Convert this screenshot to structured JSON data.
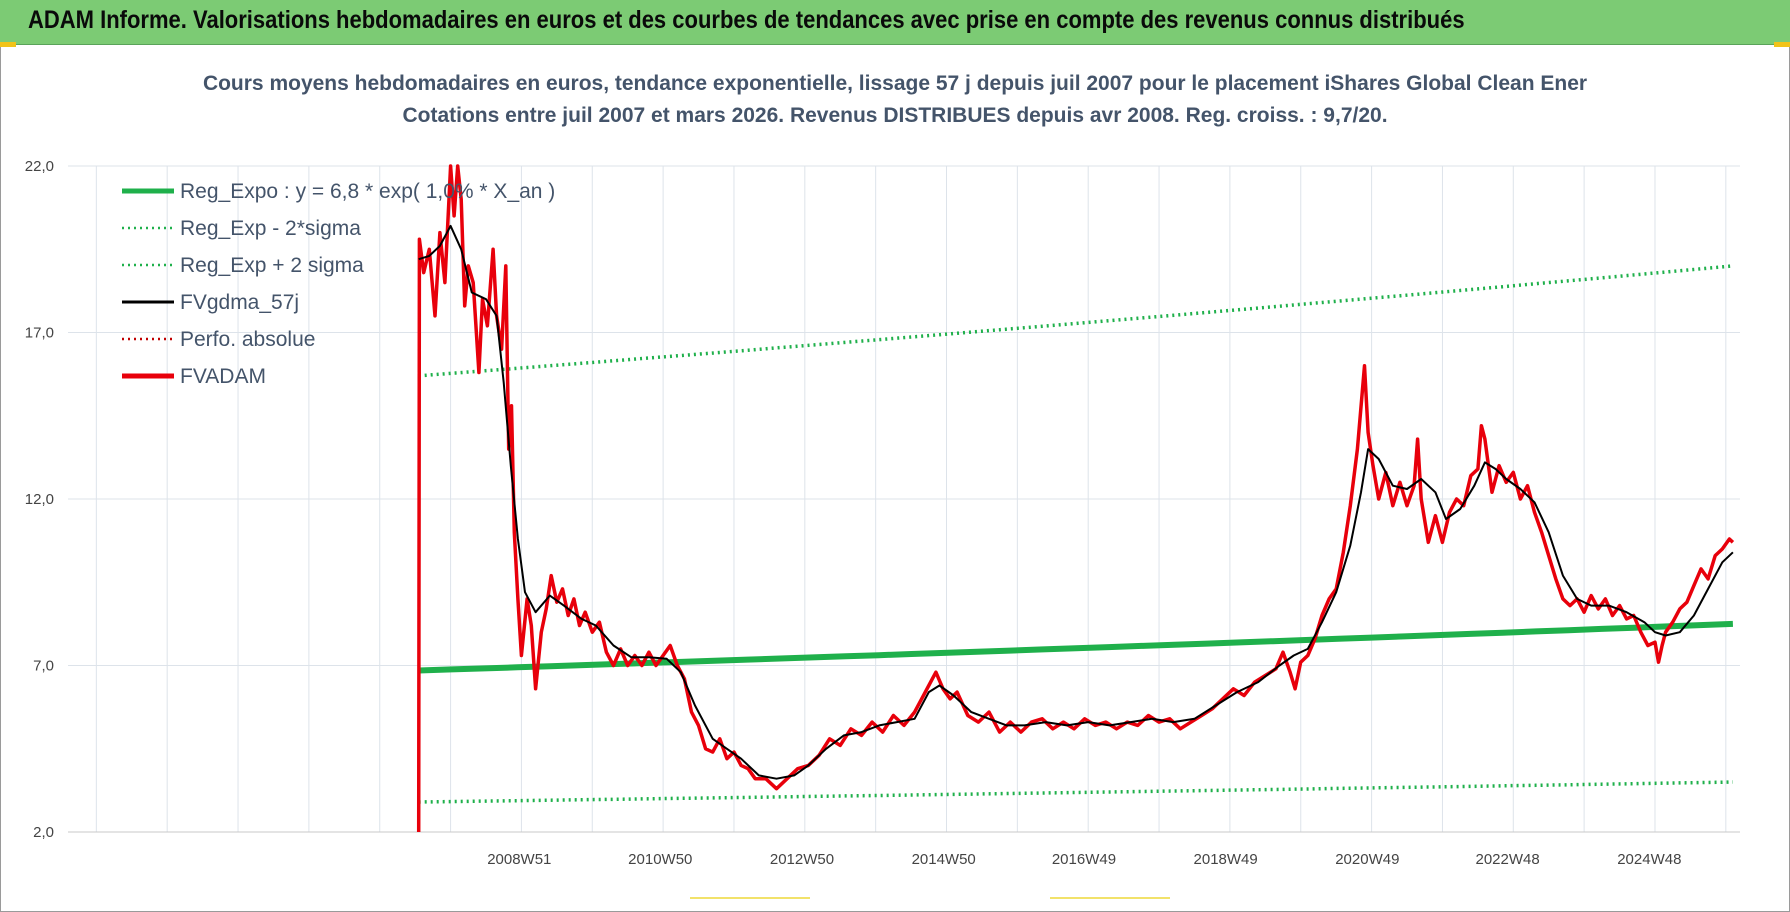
{
  "header": {
    "title": "ADAM Informe. Valorisations hebdomadaires en euros et des courbes de tendances avec prise en compte des revenus connus distribués"
  },
  "colors": {
    "header_bg": "#7ccb74",
    "accent_yellow": "#f2c318",
    "fvadam": "#e8000b",
    "fvgdma": "#000000",
    "reg": "#1fb04b"
  },
  "chart_data": {
    "type": "line",
    "title_line1": "Cours moyens hebdomadaires en euros, tendance exponentielle, lissage 57 j depuis juil 2007 pour le placement iShares Global Clean Ener",
    "title_line2": "Cotations entre juil 2007 et mars 2026. Revenus DISTRIBUES depuis avr 2008. Reg. croiss. : 9,7/20.",
    "x_range": [
      2002.6,
      2026.2
    ],
    "ylim": [
      2,
      22
    ],
    "y_ticks": [
      2,
      7,
      12,
      17,
      22
    ],
    "y_tick_labels": [
      "2,0",
      "7,0",
      "12,0",
      "17,0",
      "22,0"
    ],
    "x_ticks": [
      {
        "x": 2008.97,
        "label": "2008W51"
      },
      {
        "x": 2010.96,
        "label": "2010W50"
      },
      {
        "x": 2012.96,
        "label": "2012W50"
      },
      {
        "x": 2014.96,
        "label": "2014W50"
      },
      {
        "x": 2016.94,
        "label": "2016W49"
      },
      {
        "x": 2018.94,
        "label": "2018W49"
      },
      {
        "x": 2020.94,
        "label": "2020W49"
      },
      {
        "x": 2022.92,
        "label": "2022W48"
      },
      {
        "x": 2024.92,
        "label": "2024W48"
      }
    ],
    "grid": true,
    "legend_position": "top-left",
    "legend": [
      {
        "label": "Reg_Expo : y = 6,8 * exp( 1,0% *  X_an )",
        "color": "#1fb04b",
        "style": "solid-thick"
      },
      {
        "label": "Reg_Exp - 2*sigma",
        "color": "#1fb04b",
        "style": "dotted"
      },
      {
        "label": "Reg_Exp + 2 sigma",
        "color": "#1fb04b",
        "style": "dotted"
      },
      {
        "label": "FVgdma_57j",
        "color": "#000000",
        "style": "solid"
      },
      {
        "label": "Perfo. absolue",
        "color": "#c00000",
        "style": "dotted"
      },
      {
        "label": "FVADAM",
        "color": "#e8000b",
        "style": "solid-thick"
      }
    ],
    "series": [
      {
        "name": "Reg_Expo : y = 6,8 * exp( 1,0% *  X_an )",
        "style": "solid-thick",
        "x": [
          2007.55,
          2026.1
        ],
        "y": [
          6.85,
          8.25
        ]
      },
      {
        "name": "Reg_Exp - 2*sigma",
        "style": "dotted",
        "x": [
          2007.55,
          2026.1
        ],
        "y": [
          2.9,
          3.5
        ]
      },
      {
        "name": "Reg_Exp + 2 sigma",
        "style": "dotted",
        "x": [
          2007.55,
          2026.1
        ],
        "y": [
          15.7,
          19.0
        ]
      },
      {
        "name": "FVgdma_57j",
        "style": "solid",
        "points": [
          [
            2007.55,
            19.2
          ],
          [
            2007.7,
            19.3
          ],
          [
            2007.85,
            19.6
          ],
          [
            2008.0,
            20.2
          ],
          [
            2008.15,
            19.5
          ],
          [
            2008.3,
            18.2
          ],
          [
            2008.5,
            18.0
          ],
          [
            2008.65,
            17.5
          ],
          [
            2008.75,
            15.5
          ],
          [
            2008.85,
            13.0
          ],
          [
            2008.95,
            10.8
          ],
          [
            2009.05,
            9.2
          ],
          [
            2009.2,
            8.6
          ],
          [
            2009.4,
            9.1
          ],
          [
            2009.6,
            8.8
          ],
          [
            2009.85,
            8.4
          ],
          [
            2010.05,
            8.2
          ],
          [
            2010.3,
            7.6
          ],
          [
            2010.55,
            7.25
          ],
          [
            2010.8,
            7.25
          ],
          [
            2011.05,
            7.2
          ],
          [
            2011.25,
            6.8
          ],
          [
            2011.45,
            5.8
          ],
          [
            2011.7,
            4.8
          ],
          [
            2011.9,
            4.5
          ],
          [
            2012.1,
            4.2
          ],
          [
            2012.35,
            3.7
          ],
          [
            2012.6,
            3.6
          ],
          [
            2012.85,
            3.7
          ],
          [
            2013.05,
            4.0
          ],
          [
            2013.3,
            4.5
          ],
          [
            2013.55,
            4.9
          ],
          [
            2013.8,
            5.0
          ],
          [
            2014.05,
            5.2
          ],
          [
            2014.3,
            5.3
          ],
          [
            2014.55,
            5.4
          ],
          [
            2014.75,
            6.2
          ],
          [
            2014.9,
            6.4
          ],
          [
            2015.1,
            6.1
          ],
          [
            2015.35,
            5.6
          ],
          [
            2015.6,
            5.4
          ],
          [
            2015.85,
            5.2
          ],
          [
            2016.1,
            5.2
          ],
          [
            2016.4,
            5.3
          ],
          [
            2016.7,
            5.2
          ],
          [
            2017.0,
            5.3
          ],
          [
            2017.3,
            5.2
          ],
          [
            2017.6,
            5.3
          ],
          [
            2017.9,
            5.4
          ],
          [
            2018.2,
            5.3
          ],
          [
            2018.5,
            5.4
          ],
          [
            2018.8,
            5.8
          ],
          [
            2019.1,
            6.2
          ],
          [
            2019.4,
            6.5
          ],
          [
            2019.7,
            7.0
          ],
          [
            2019.9,
            7.3
          ],
          [
            2020.1,
            7.5
          ],
          [
            2020.3,
            8.3
          ],
          [
            2020.5,
            9.2
          ],
          [
            2020.7,
            10.6
          ],
          [
            2020.85,
            12.2
          ],
          [
            2020.95,
            13.5
          ],
          [
            2021.1,
            13.2
          ],
          [
            2021.3,
            12.4
          ],
          [
            2021.5,
            12.3
          ],
          [
            2021.7,
            12.6
          ],
          [
            2021.9,
            12.2
          ],
          [
            2022.05,
            11.4
          ],
          [
            2022.25,
            11.7
          ],
          [
            2022.45,
            12.4
          ],
          [
            2022.6,
            13.1
          ],
          [
            2022.75,
            12.9
          ],
          [
            2022.9,
            12.6
          ],
          [
            2023.1,
            12.3
          ],
          [
            2023.3,
            11.9
          ],
          [
            2023.5,
            11.0
          ],
          [
            2023.7,
            9.7
          ],
          [
            2023.9,
            9.0
          ],
          [
            2024.1,
            8.8
          ],
          [
            2024.35,
            8.8
          ],
          [
            2024.6,
            8.6
          ],
          [
            2024.85,
            8.3
          ],
          [
            2025.0,
            8.0
          ],
          [
            2025.15,
            7.9
          ],
          [
            2025.35,
            8.0
          ],
          [
            2025.55,
            8.5
          ],
          [
            2025.75,
            9.3
          ],
          [
            2025.95,
            10.1
          ],
          [
            2026.1,
            10.4
          ]
        ]
      },
      {
        "name": "FVADAM",
        "style": "solid-thick",
        "points": [
          [
            2007.55,
            2.0
          ],
          [
            2007.56,
            19.8
          ],
          [
            2007.62,
            18.8
          ],
          [
            2007.7,
            19.5
          ],
          [
            2007.78,
            17.5
          ],
          [
            2007.85,
            20.0
          ],
          [
            2007.92,
            18.5
          ],
          [
            2008.0,
            22.0
          ],
          [
            2008.05,
            20.5
          ],
          [
            2008.1,
            22.0
          ],
          [
            2008.15,
            21.0
          ],
          [
            2008.2,
            17.8
          ],
          [
            2008.25,
            19.0
          ],
          [
            2008.32,
            18.5
          ],
          [
            2008.4,
            15.8
          ],
          [
            2008.45,
            18.0
          ],
          [
            2008.52,
            17.2
          ],
          [
            2008.6,
            19.5
          ],
          [
            2008.65,
            17.5
          ],
          [
            2008.72,
            16.5
          ],
          [
            2008.78,
            19.0
          ],
          [
            2008.82,
            13.5
          ],
          [
            2008.86,
            14.8
          ],
          [
            2008.9,
            11.0
          ],
          [
            2008.95,
            9.0
          ],
          [
            2009.0,
            7.3
          ],
          [
            2009.08,
            9.0
          ],
          [
            2009.14,
            8.2
          ],
          [
            2009.2,
            6.3
          ],
          [
            2009.28,
            8.0
          ],
          [
            2009.35,
            8.7
          ],
          [
            2009.42,
            9.7
          ],
          [
            2009.5,
            8.9
          ],
          [
            2009.58,
            9.3
          ],
          [
            2009.66,
            8.5
          ],
          [
            2009.74,
            9.0
          ],
          [
            2009.82,
            8.2
          ],
          [
            2009.9,
            8.6
          ],
          [
            2010.0,
            8.0
          ],
          [
            2010.1,
            8.3
          ],
          [
            2010.2,
            7.4
          ],
          [
            2010.3,
            7.0
          ],
          [
            2010.4,
            7.5
          ],
          [
            2010.5,
            7.0
          ],
          [
            2010.6,
            7.3
          ],
          [
            2010.7,
            7.0
          ],
          [
            2010.8,
            7.4
          ],
          [
            2010.9,
            7.0
          ],
          [
            2011.0,
            7.3
          ],
          [
            2011.1,
            7.6
          ],
          [
            2011.2,
            7.0
          ],
          [
            2011.3,
            6.6
          ],
          [
            2011.4,
            5.6
          ],
          [
            2011.5,
            5.2
          ],
          [
            2011.6,
            4.5
          ],
          [
            2011.7,
            4.4
          ],
          [
            2011.8,
            4.8
          ],
          [
            2011.9,
            4.2
          ],
          [
            2012.0,
            4.4
          ],
          [
            2012.1,
            4.0
          ],
          [
            2012.2,
            3.9
          ],
          [
            2012.3,
            3.6
          ],
          [
            2012.45,
            3.6
          ],
          [
            2012.6,
            3.3
          ],
          [
            2012.75,
            3.6
          ],
          [
            2012.9,
            3.9
          ],
          [
            2013.05,
            4.0
          ],
          [
            2013.2,
            4.3
          ],
          [
            2013.35,
            4.8
          ],
          [
            2013.5,
            4.6
          ],
          [
            2013.65,
            5.1
          ],
          [
            2013.8,
            4.9
          ],
          [
            2013.95,
            5.3
          ],
          [
            2014.1,
            5.0
          ],
          [
            2014.25,
            5.5
          ],
          [
            2014.4,
            5.2
          ],
          [
            2014.55,
            5.6
          ],
          [
            2014.65,
            6.0
          ],
          [
            2014.75,
            6.4
          ],
          [
            2014.85,
            6.8
          ],
          [
            2014.95,
            6.3
          ],
          [
            2015.05,
            6.0
          ],
          [
            2015.15,
            6.2
          ],
          [
            2015.3,
            5.5
          ],
          [
            2015.45,
            5.3
          ],
          [
            2015.6,
            5.6
          ],
          [
            2015.75,
            5.0
          ],
          [
            2015.9,
            5.3
          ],
          [
            2016.05,
            5.0
          ],
          [
            2016.2,
            5.3
          ],
          [
            2016.35,
            5.4
          ],
          [
            2016.5,
            5.1
          ],
          [
            2016.65,
            5.3
          ],
          [
            2016.8,
            5.1
          ],
          [
            2016.95,
            5.4
          ],
          [
            2017.1,
            5.2
          ],
          [
            2017.25,
            5.3
          ],
          [
            2017.4,
            5.1
          ],
          [
            2017.55,
            5.3
          ],
          [
            2017.7,
            5.2
          ],
          [
            2017.85,
            5.5
          ],
          [
            2018.0,
            5.3
          ],
          [
            2018.15,
            5.4
          ],
          [
            2018.3,
            5.1
          ],
          [
            2018.45,
            5.3
          ],
          [
            2018.6,
            5.5
          ],
          [
            2018.75,
            5.7
          ],
          [
            2018.9,
            6.0
          ],
          [
            2019.05,
            6.3
          ],
          [
            2019.2,
            6.1
          ],
          [
            2019.35,
            6.5
          ],
          [
            2019.5,
            6.7
          ],
          [
            2019.65,
            6.9
          ],
          [
            2019.75,
            7.4
          ],
          [
            2019.85,
            6.8
          ],
          [
            2019.92,
            6.3
          ],
          [
            2020.0,
            7.1
          ],
          [
            2020.1,
            7.3
          ],
          [
            2020.2,
            7.8
          ],
          [
            2020.3,
            8.5
          ],
          [
            2020.4,
            9.0
          ],
          [
            2020.5,
            9.3
          ],
          [
            2020.6,
            10.4
          ],
          [
            2020.7,
            11.8
          ],
          [
            2020.8,
            13.5
          ],
          [
            2020.9,
            16.0
          ],
          [
            2020.95,
            14.0
          ],
          [
            2021.02,
            13.0
          ],
          [
            2021.1,
            12.0
          ],
          [
            2021.2,
            12.8
          ],
          [
            2021.3,
            11.8
          ],
          [
            2021.4,
            12.5
          ],
          [
            2021.5,
            11.8
          ],
          [
            2021.6,
            12.4
          ],
          [
            2021.65,
            13.8
          ],
          [
            2021.7,
            12.0
          ],
          [
            2021.8,
            10.7
          ],
          [
            2021.9,
            11.5
          ],
          [
            2022.0,
            10.7
          ],
          [
            2022.1,
            11.6
          ],
          [
            2022.2,
            12.0
          ],
          [
            2022.3,
            11.8
          ],
          [
            2022.4,
            12.7
          ],
          [
            2022.5,
            12.9
          ],
          [
            2022.55,
            14.2
          ],
          [
            2022.6,
            13.8
          ],
          [
            2022.7,
            12.2
          ],
          [
            2022.8,
            13.0
          ],
          [
            2022.9,
            12.5
          ],
          [
            2023.0,
            12.8
          ],
          [
            2023.1,
            12.0
          ],
          [
            2023.2,
            12.4
          ],
          [
            2023.3,
            11.6
          ],
          [
            2023.4,
            11.0
          ],
          [
            2023.5,
            10.3
          ],
          [
            2023.6,
            9.6
          ],
          [
            2023.7,
            9.0
          ],
          [
            2023.8,
            8.8
          ],
          [
            2023.9,
            9.0
          ],
          [
            2024.0,
            8.6
          ],
          [
            2024.1,
            9.1
          ],
          [
            2024.2,
            8.7
          ],
          [
            2024.3,
            9.0
          ],
          [
            2024.4,
            8.5
          ],
          [
            2024.5,
            8.8
          ],
          [
            2024.6,
            8.4
          ],
          [
            2024.7,
            8.5
          ],
          [
            2024.8,
            8.0
          ],
          [
            2024.9,
            7.6
          ],
          [
            2025.0,
            7.7
          ],
          [
            2025.05,
            7.1
          ],
          [
            2025.1,
            7.6
          ],
          [
            2025.15,
            8.0
          ],
          [
            2025.25,
            8.3
          ],
          [
            2025.35,
            8.7
          ],
          [
            2025.45,
            8.9
          ],
          [
            2025.55,
            9.4
          ],
          [
            2025.65,
            9.9
          ],
          [
            2025.75,
            9.6
          ],
          [
            2025.85,
            10.3
          ],
          [
            2025.95,
            10.5
          ],
          [
            2026.05,
            10.8
          ],
          [
            2026.1,
            10.7
          ]
        ]
      }
    ]
  }
}
